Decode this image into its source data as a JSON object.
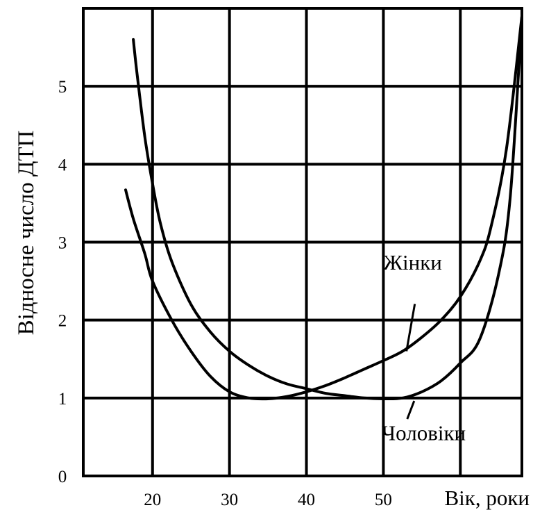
{
  "chart_data": {
    "type": "line",
    "xlabel": "Вік, роки",
    "ylabel": "Відносне число ДТП",
    "xlim": [
      11,
      68
    ],
    "ylim": [
      0,
      6
    ],
    "x_ticks": [
      20,
      30,
      40,
      50
    ],
    "y_ticks": [
      0,
      1,
      2,
      3,
      4,
      5
    ],
    "grid": true,
    "series": [
      {
        "name": "Жінки",
        "x": [
          17.5,
          18,
          19,
          20,
          21,
          22.5,
          25,
          27.5,
          30,
          32.5,
          35,
          37.5,
          40,
          42.5,
          45,
          47.5,
          50,
          52.5,
          55,
          57.5,
          60,
          62.5,
          65,
          66.5,
          68
        ],
        "y": [
          5.6,
          5.15,
          4.35,
          3.75,
          3.25,
          2.75,
          2.2,
          1.85,
          1.6,
          1.42,
          1.28,
          1.18,
          1.12,
          1.06,
          1.03,
          1.0,
          0.99,
          1.0,
          1.08,
          1.22,
          1.45,
          1.75,
          2.6,
          3.6,
          5.9
        ]
      },
      {
        "name": "Чоловіки",
        "x": [
          16.5,
          17.5,
          19,
          20,
          22.5,
          25,
          27.5,
          30,
          32.5,
          35,
          37.5,
          40,
          42.5,
          45,
          47.5,
          50,
          52.5,
          55,
          57.5,
          60,
          62.5,
          64,
          66,
          68
        ],
        "y": [
          3.67,
          3.3,
          2.85,
          2.5,
          2.0,
          1.6,
          1.28,
          1.08,
          1.0,
          0.99,
          1.02,
          1.08,
          1.16,
          1.26,
          1.37,
          1.48,
          1.6,
          1.78,
          2.0,
          2.3,
          2.75,
          3.2,
          4.2,
          5.9
        ]
      }
    ],
    "annotations": [
      {
        "text": "Жінки",
        "x": 53,
        "y": 1.6,
        "label_x": 53.8,
        "label_y": 2.65
      },
      {
        "text": "Чоловіки",
        "x": 54,
        "y": 0.98,
        "label_x": 53,
        "label_y": 0.55
      }
    ]
  }
}
